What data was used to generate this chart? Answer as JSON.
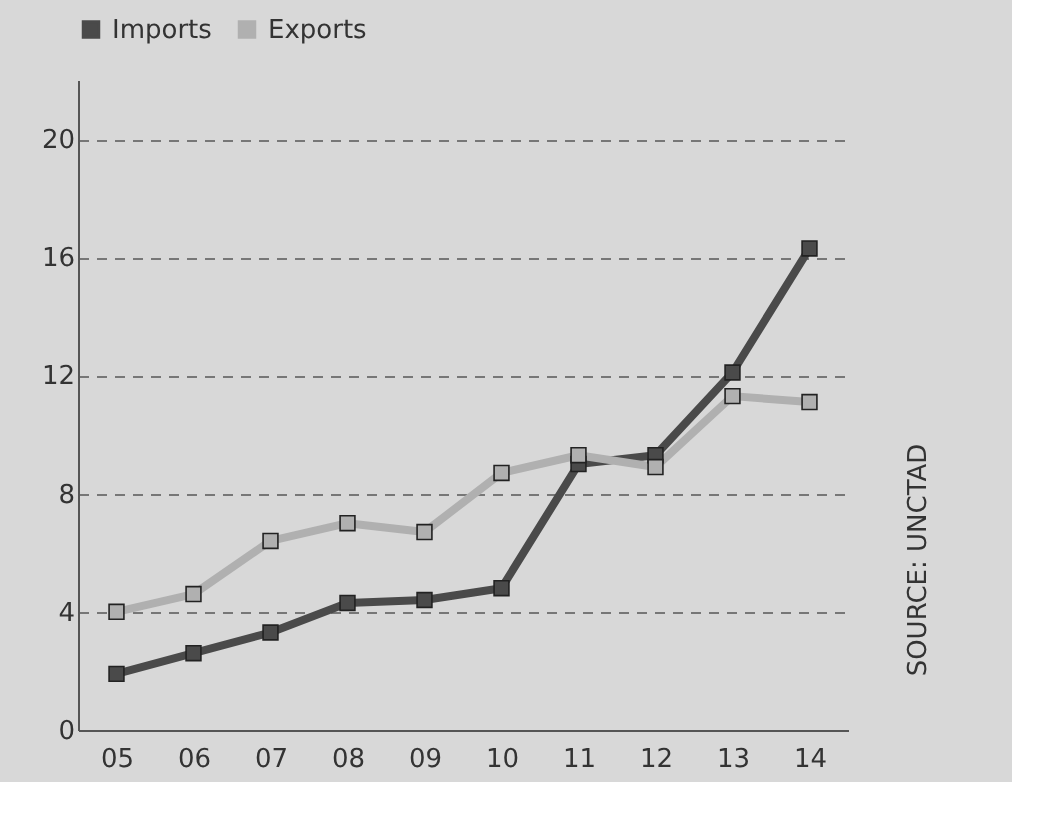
{
  "chart_data": {
    "type": "line",
    "categories": [
      "05",
      "06",
      "07",
      "08",
      "09",
      "10",
      "11",
      "12",
      "13",
      "14"
    ],
    "series": [
      {
        "name": "Imports",
        "color": "#4a4a4a",
        "values": [
          1.9,
          2.6,
          3.3,
          4.3,
          4.4,
          4.8,
          9.0,
          9.3,
          12.1,
          16.3
        ]
      },
      {
        "name": "Exports",
        "color": "#b0b0b0",
        "values": [
          4.0,
          4.6,
          6.4,
          7.0,
          6.7,
          8.7,
          9.3,
          8.9,
          11.3,
          11.1
        ]
      }
    ],
    "ylim": [
      0,
      22
    ],
    "yticks": [
      0,
      4,
      8,
      12,
      16,
      20
    ],
    "grid": "y",
    "legend": "top",
    "marker": "square",
    "line_style": "solid",
    "annotations": [
      "SOURCE: UNCTAD"
    ]
  }
}
